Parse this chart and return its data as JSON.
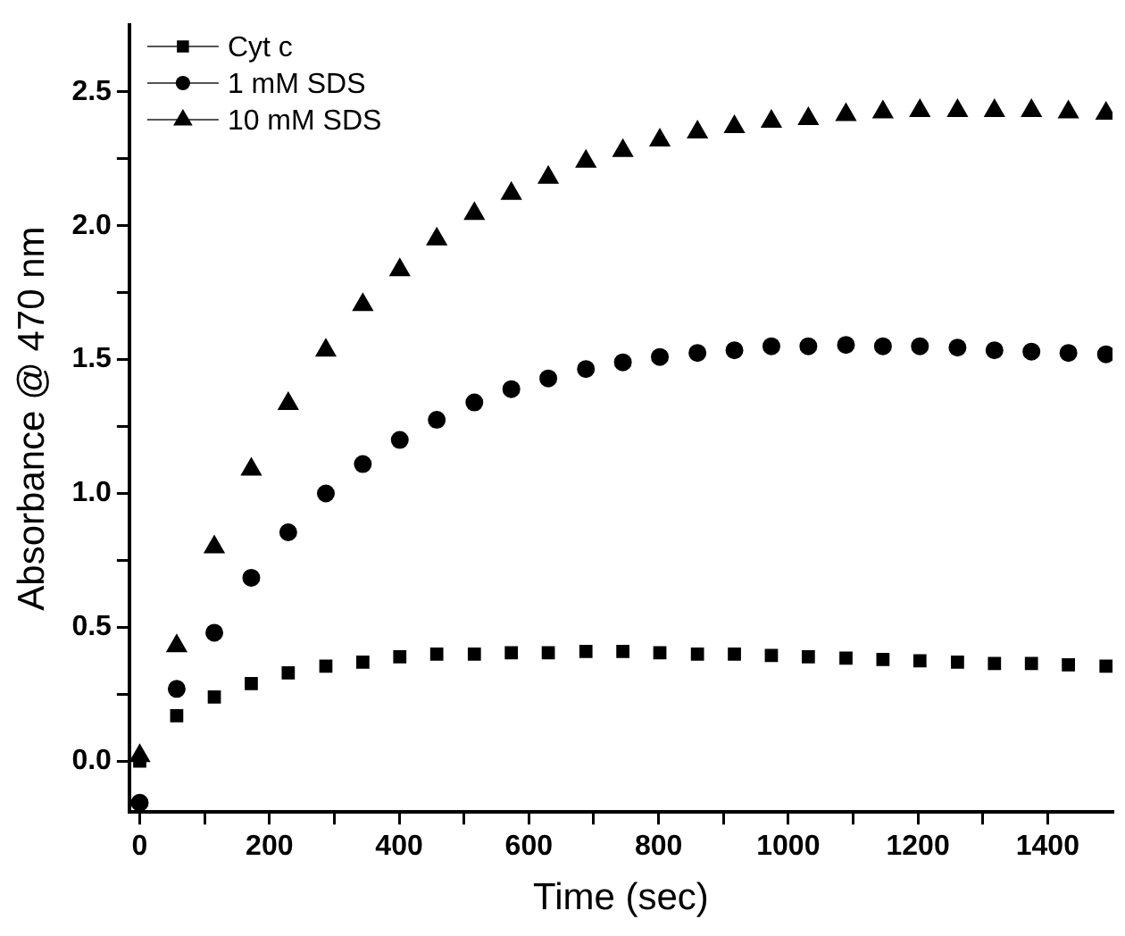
{
  "chart_data": {
    "type": "scatter",
    "xlabel": "Time (sec)",
    "ylabel": "Absorbance @ 470 nm",
    "x": [
      0,
      57,
      115,
      172,
      229,
      287,
      344,
      401,
      458,
      516,
      573,
      630,
      688,
      745,
      802,
      860,
      917,
      974,
      1031,
      1089,
      1146,
      1203,
      1261,
      1318,
      1375,
      1432,
      1490
    ],
    "series": [
      {
        "name": "Cyt c",
        "color": "#000000",
        "marker": "square",
        "values": [
          0,
          0.17,
          0.24,
          0.29,
          0.33,
          0.355,
          0.37,
          0.39,
          0.4,
          0.4,
          0.405,
          0.405,
          0.41,
          0.41,
          0.405,
          0.4,
          0.4,
          0.395,
          0.39,
          0.385,
          0.38,
          0.375,
          0.37,
          0.365,
          0.365,
          0.36,
          0.355
        ]
      },
      {
        "name": "1 mM SDS",
        "color": "#000000",
        "marker": "circle",
        "values": [
          -0.155,
          0.27,
          0.48,
          0.685,
          0.855,
          1.0,
          1.11,
          1.2,
          1.275,
          1.34,
          1.39,
          1.43,
          1.465,
          1.49,
          1.51,
          1.525,
          1.535,
          1.55,
          1.55,
          1.555,
          1.55,
          1.55,
          1.545,
          1.535,
          1.53,
          1.525,
          1.52
        ]
      },
      {
        "name": "10 mM SDS",
        "color": "#000000",
        "marker": "triangle",
        "values": [
          0.02,
          0.43,
          0.8,
          1.09,
          1.335,
          1.535,
          1.705,
          1.835,
          1.95,
          2.045,
          2.12,
          2.18,
          2.24,
          2.28,
          2.32,
          2.35,
          2.37,
          2.39,
          2.4,
          2.415,
          2.425,
          2.43,
          2.43,
          2.43,
          2.43,
          2.425,
          2.42
        ]
      }
    ],
    "xlim": [
      -16,
      1500
    ],
    "xticks": [
      0,
      {
        "value": 100,
        "label": null
      },
      200,
      {
        "value": 300,
        "label": null
      },
      400,
      {
        "value": 500,
        "label": null
      },
      600,
      {
        "value": 700,
        "label": null
      },
      800,
      {
        "value": 900,
        "label": null
      },
      1000,
      {
        "value": 1100,
        "label": null
      },
      1200,
      {
        "value": 1300,
        "label": null
      },
      1400
    ],
    "ylim": [
      -0.19,
      2.75
    ],
    "yticks": [
      {
        "value": 0,
        "label": "0.0"
      },
      {
        "value": 0.25,
        "label": null
      },
      {
        "value": 0.5,
        "label": "0.5"
      },
      {
        "value": 0.75,
        "label": null
      },
      {
        "value": 1,
        "label": "1.0"
      },
      {
        "value": 1.25,
        "label": null
      },
      {
        "value": 1.5,
        "label": "1.5"
      },
      {
        "value": 1.75,
        "label": null
      },
      {
        "value": 2,
        "label": "2.0"
      },
      {
        "value": 2.25,
        "label": null
      },
      {
        "value": 2.5,
        "label": "2.5"
      }
    ],
    "legend": "top left",
    "grid": false
  }
}
